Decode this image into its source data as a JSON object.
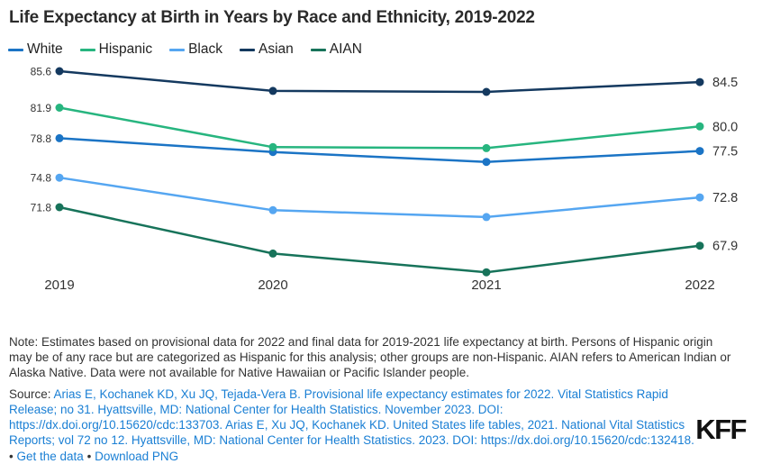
{
  "title": "Life Expectancy at Birth in Years by Race and Ethnicity, 2019-2022",
  "chart_data": {
    "type": "line",
    "x": [
      "2019",
      "2020",
      "2021",
      "2022"
    ],
    "series": [
      {
        "name": "White",
        "color": "#1b74c5",
        "values": [
          78.8,
          77.4,
          76.4,
          77.5
        ],
        "start_label": "78.8",
        "end_label": "77.5"
      },
      {
        "name": "Hispanic",
        "color": "#27b57f",
        "values": [
          81.9,
          77.9,
          77.8,
          80.0
        ],
        "start_label": "81.9",
        "end_label": "80.0"
      },
      {
        "name": "Black",
        "color": "#55a6f1",
        "values": [
          74.8,
          71.5,
          70.8,
          72.8
        ],
        "start_label": "74.8",
        "end_label": "72.8"
      },
      {
        "name": "Asian",
        "color": "#14395f",
        "values": [
          85.6,
          83.6,
          83.5,
          84.5
        ],
        "start_label": "85.6",
        "end_label": "84.5"
      },
      {
        "name": "AIAN",
        "color": "#17735a",
        "values": [
          71.8,
          67.1,
          65.2,
          67.9
        ],
        "start_label": "71.8",
        "end_label": "67.9"
      }
    ],
    "ylim": [
      64,
      87
    ],
    "grid": false,
    "legend_position": "top",
    "xlabel": "",
    "ylabel": ""
  },
  "note": "Note: Estimates based on provisional data for 2022 and final data for 2019-2021 life expectancy at birth. Persons of Hispanic origin may be of any race but are categorized as Hispanic for this analysis; other groups are non-Hispanic. AIAN refers to American Indian or Alaska Native. Data were not available for Native Hawaiian or Pacific Islander people.",
  "source": {
    "prefix": "Source: ",
    "citation": "Arias E, Kochanek KD, Xu JQ, Tejada-Vera B. Provisional life expectancy estimates for 2022. Vital Statistics Rapid Release; no 31. Hyattsville, MD: National Center for Health Statistics. November 2023. DOI: https://dx.doi.org/10.15620/cdc:133703. Arias E, Xu JQ, Kochanek KD. United States life tables, 2021. National Vital Statistics Reports; vol 72 no 12. Hyattsville, MD: National Center for Health Statistics. 2023. DOI: https://dx.doi.org/10.15620/cdc:132418.",
    "separator": "•",
    "links": [
      "Get the data",
      "Download PNG"
    ]
  },
  "logo": "KFF",
  "colors": {
    "link": "#1a7fd4",
    "text": "#333333",
    "title": "#2b2b2b",
    "logo": "#121212"
  }
}
